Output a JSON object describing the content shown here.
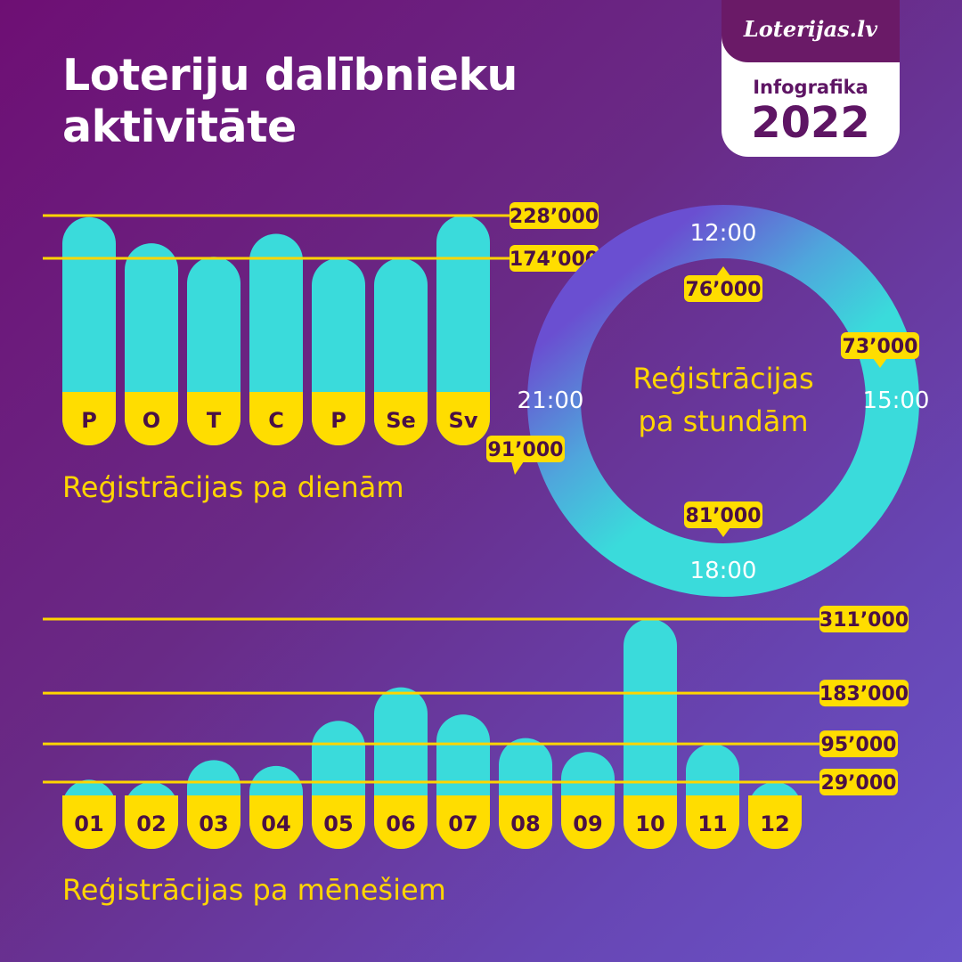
{
  "title": {
    "line1": "Loteriju dalībnieku",
    "line2": "aktivitāte"
  },
  "badge": {
    "logo": "Loterijas.lv",
    "label": "Infografika",
    "year": "2022"
  },
  "colors": {
    "bar": "#3adbdb",
    "base": "#ffdd00",
    "line": "#ffd500",
    "tag_text": "#4a1045",
    "white": "#ffffff",
    "ring_start": "#6a4fd1",
    "ring_mid": "#4fa6dc",
    "ring_end": "#3adbdb"
  },
  "sections": {
    "daily": "Reģistrācijas pa dienām",
    "monthly": "Reģistrācijas pa mēnešiem"
  },
  "chart_data": [
    {
      "type": "bar",
      "categories": [
        "P",
        "O",
        "T",
        "C",
        "P",
        "Se",
        "Sv"
      ],
      "values": [
        226000,
        193000,
        176000,
        205000,
        174000,
        174000,
        228000
      ],
      "reference_lines": [
        "228’000",
        "174’000"
      ],
      "title": "Reģistrācijas pa dienām"
    },
    {
      "type": "pie",
      "title": "Reģistrācijas pa stundām",
      "categories": [
        "12:00",
        "15:00",
        "18:00",
        "21:00"
      ],
      "values": [
        76000,
        73000,
        81000,
        91000
      ],
      "labels": [
        "76’000",
        "73’000",
        "81’000",
        "91’000"
      ]
    },
    {
      "type": "bar",
      "categories": [
        "01",
        "02",
        "03",
        "04",
        "05",
        "06",
        "07",
        "08",
        "09",
        "10",
        "11",
        "12"
      ],
      "values": [
        33000,
        29000,
        67000,
        57000,
        135000,
        193000,
        146000,
        105000,
        81000,
        311000,
        95000,
        29000
      ],
      "reference_lines": [
        "311’000",
        "183’000",
        "95’000",
        "29’000"
      ],
      "title": "Reģistrācijas pa mēnešiem"
    }
  ]
}
